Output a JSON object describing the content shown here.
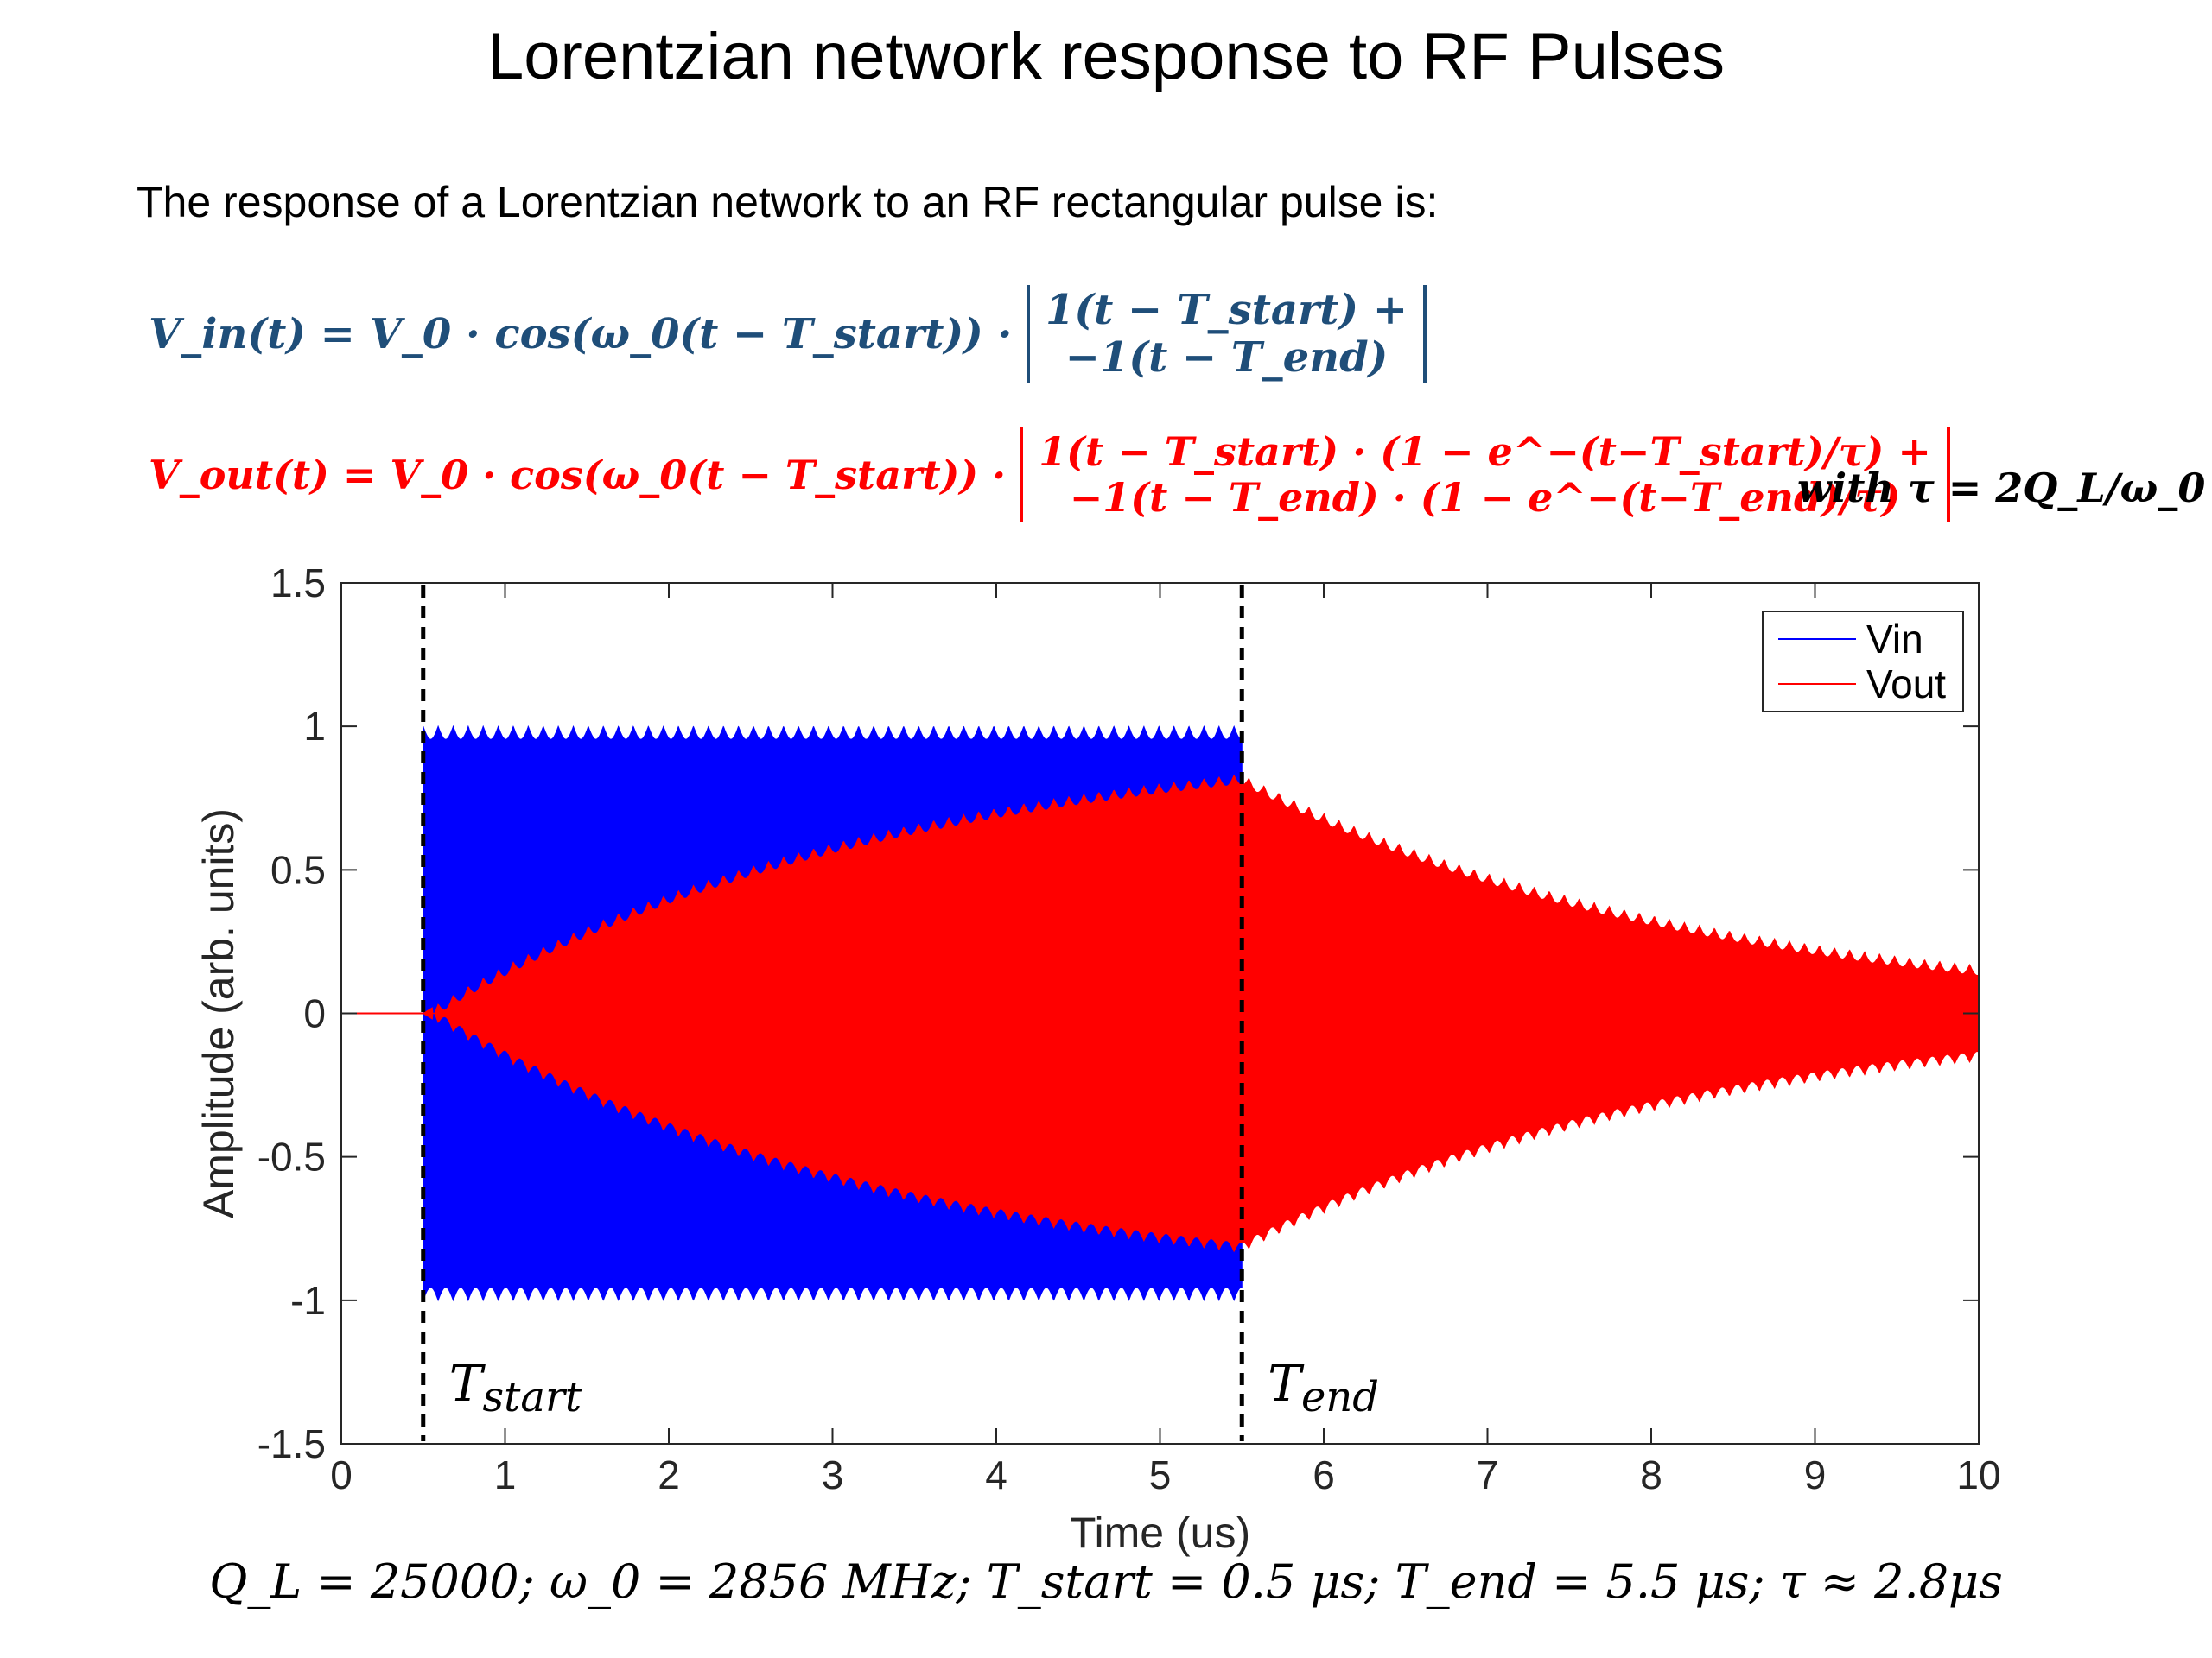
{
  "slide": {
    "title": "Lorentzian network response to RF Pulses",
    "intro": "The response of a Lorentzian network to an RF rectangular pulse is:",
    "eq_vin": {
      "lhs": "V_in(t) = V_0 · cos(ω_0(t − T_start)) ·",
      "line1": "1(t − T_start) +",
      "line2": "−1(t − T_end)"
    },
    "eq_vout": {
      "lhs": "V_out(t) = V_0 · cos(ω_0(t − T_start)) ·",
      "line1": "1(t − T_start) · (1 − e^−(t−T_start)/τ) +",
      "line2": "−1(t − T_end) · (1 − e^−(t−T_end)/τ)"
    },
    "eq_tau": "with τ = 2Q_L/ω_0",
    "params": "Q_L = 25000; ω_0 = 2856 MHz; T_start = 0.5 μs; T_end = 5.5 μs;  τ ≈ 2.8μs"
  },
  "colors": {
    "vin": "#0000ff",
    "vout": "#ff0000",
    "eq_vin": "#1f4e79",
    "eq_vout": "#ff0000"
  },
  "chart_data": {
    "type": "line",
    "xlabel": "Time (us)",
    "ylabel": "Amplitude (arb. units)",
    "xlim": [
      0,
      10
    ],
    "ylim": [
      -1.5,
      1.5
    ],
    "xticks": [
      0,
      1,
      2,
      3,
      4,
      5,
      6,
      7,
      8,
      9,
      10
    ],
    "yticks": [
      -1.5,
      -1,
      -0.5,
      0,
      0.5,
      1,
      1.5
    ],
    "grid": false,
    "legend_position": "top-right",
    "series": [
      {
        "name": "Vin",
        "color": "#0000ff"
      },
      {
        "name": "Vout",
        "color": "#ff0000"
      }
    ],
    "t_start": 0.5,
    "t_end": 5.5,
    "tau": 2.8,
    "annotations": [
      {
        "x": 0.5,
        "label": "T_start"
      },
      {
        "x": 5.5,
        "label": "T_end"
      }
    ],
    "envelope_samples": {
      "x": [
        0,
        0.5,
        1.0,
        2.0,
        3.0,
        4.0,
        5.0,
        5.5,
        6.0,
        7.0,
        8.0,
        9.0,
        10.0
      ],
      "vin_amp": [
        0,
        1,
        1,
        1,
        1,
        1,
        1,
        0,
        0,
        0,
        0,
        0,
        0
      ],
      "vout_amp": [
        0,
        0,
        0.16,
        0.42,
        0.6,
        0.73,
        0.8,
        0.83,
        0.69,
        0.48,
        0.33,
        0.23,
        0.16
      ]
    }
  }
}
